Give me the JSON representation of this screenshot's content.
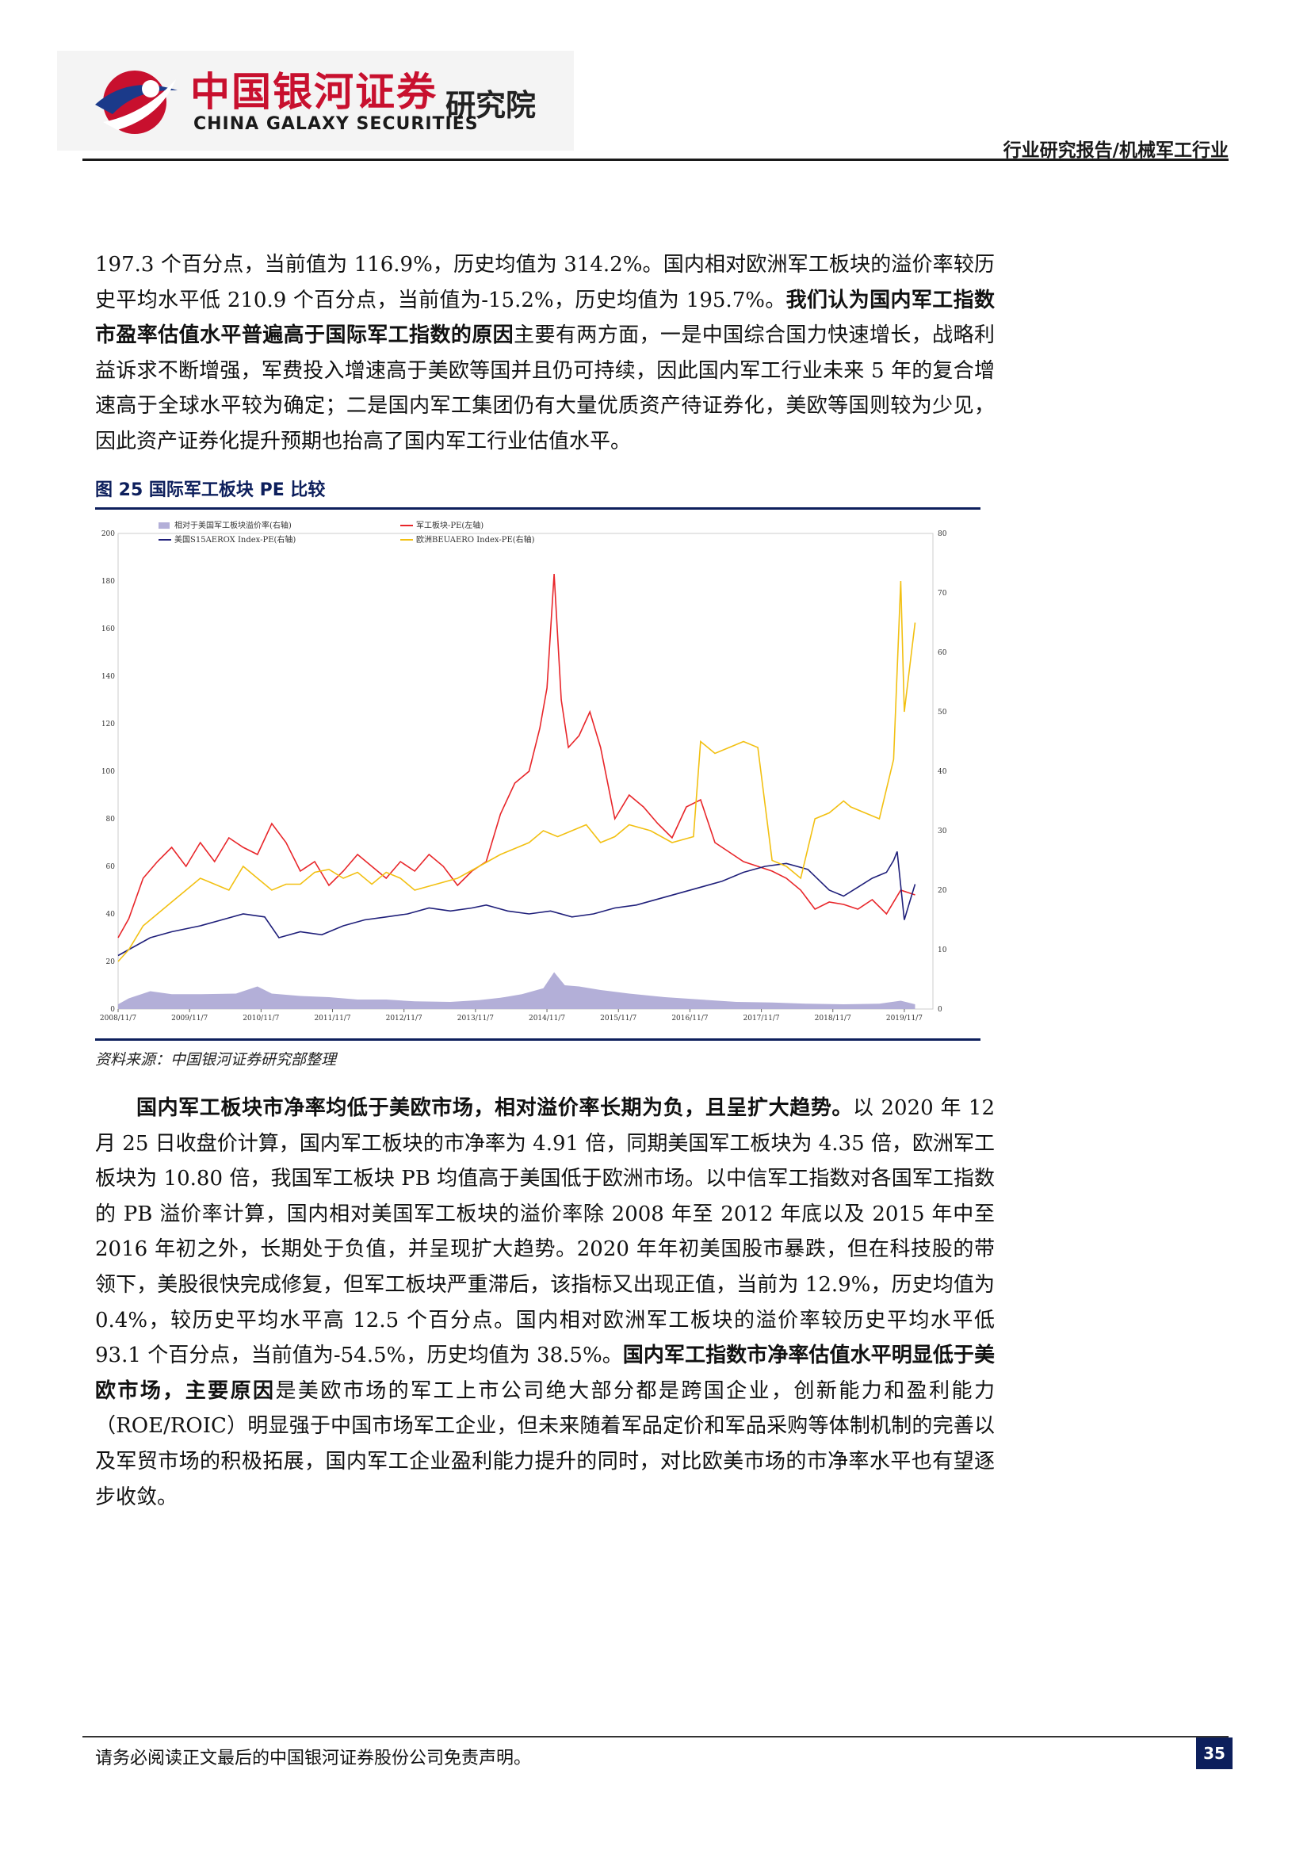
{
  "header": {
    "logo_cn": "中国银河证券",
    "logo_suffix": "研究院",
    "logo_en": "CHINA GALAXY SECURITIES",
    "report_type": "行业研究报告/机械军工行业"
  },
  "body": {
    "para1": [
      {
        "text": "197.3 个百分点，当前值为 116.9%，历史均值为 314.2%。国内相对欧洲军工板块的溢价率较历史平均水平低 210.9 个百分点，当前值为-15.2%，历史均值为 195.7%。",
        "bold": false
      },
      {
        "text": "我们认为国内军工指数市盈率估值水平普遍高于国际军工指数的原因",
        "bold": true
      },
      {
        "text": "主要有两方面，一是中国综合国力快速增长，战略利益诉求不断增强，军费投入增速高于美欧等国并且仍可持续，因此国内军工行业未来 5 年的复合增速高于全球水平较为确定；二是国内军工集团仍有大量优质资产待证券化，美欧等国则较为少见，因此资产证券化提升预期也抬高了国内军工行业估值水平。",
        "bold": false
      }
    ],
    "para2": [
      {
        "text": "国内军工板块市净率均低于美欧市场，相对溢价率长期为负，且呈扩大趋势。",
        "bold": true
      },
      {
        "text": "以 2020 年 12 月 25 日收盘价计算，国内军工板块的市净率为 4.91 倍，同期美国军工板块为 4.35 倍，欧洲军工板块为 10.80 倍，我国军工板块 PB 均值高于美国低于欧洲市场。以中信军工指数对各国军工指数的 PB 溢价率计算，国内相对美国军工板块的溢价率除 2008 年至 2012 年底以及 2015 年中至 2016 年初之外，长期处于负值，并呈现扩大趋势。2020 年年初美国股市暴跌，但在科技股的带领下，美股很快完成修复，但军工板块严重滞后，该指标又出现正值，当前为 12.9%，历史均值为 0.4%，较历史平均水平高 12.5 个百分点。国内相对欧洲军工板块的溢价率较历史平均水平低 93.1 个百分点，当前值为-54.5%，历史均值为 38.5%。",
        "bold": false
      },
      {
        "text": "国内军工指数市净率估值水平明显低于美欧市场，主要原因",
        "bold": true
      },
      {
        "text": "是美欧市场的军工上市公司绝大部分都是跨国企业，创新能力和盈利能力（ROE/ROIC）明显强于中国市场军工企业，但未来随着军品定价和军品采购等体制机制的完善以及军贸市场的积极拓展，国内军工企业盈利能力提升的同时，对比欧美市场的市净率水平也有望逐步收敛。",
        "bold": false
      }
    ]
  },
  "figure": {
    "title": "图 25 国际军工板块 PE 比较",
    "source": "资料来源：中国银河证券研究部整理"
  },
  "chart_data": {
    "type": "line",
    "title": "",
    "x_ticks": [
      "2008/11/7",
      "2009/11/7",
      "2010/11/7",
      "2011/11/7",
      "2012/11/7",
      "2013/11/7",
      "2014/11/7",
      "2015/11/7",
      "2016/11/7",
      "2017/11/7",
      "2018/11/7",
      "2019/11/7"
    ],
    "y_left": {
      "range": [
        0,
        200
      ],
      "ticks": [
        0,
        20,
        40,
        60,
        80,
        100,
        120,
        140,
        160,
        180,
        200
      ]
    },
    "y_right": {
      "range": [
        0,
        80
      ],
      "ticks": [
        0,
        10,
        20,
        30,
        40,
        50,
        60,
        70,
        80
      ]
    },
    "legend_placement": "top",
    "series": [
      {
        "name": "相对于美国军工板块溢价率(右轴)",
        "axis": "right",
        "style": "area",
        "color": "#b3afd8",
        "x": [
          2008.85,
          2009.0,
          2009.3,
          2009.6,
          2010.0,
          2010.5,
          2010.8,
          2011.0,
          2011.4,
          2011.8,
          2012.2,
          2012.6,
          2013.0,
          2013.5,
          2013.9,
          2014.2,
          2014.5,
          2014.8,
          2014.95,
          2015.1,
          2015.3,
          2015.6,
          2016.0,
          2016.5,
          2017.0,
          2017.5,
          2018.0,
          2018.5,
          2019.0,
          2019.5,
          2019.8,
          2020.0
        ],
        "values": [
          0.8,
          1.8,
          3.0,
          2.5,
          2.5,
          2.6,
          3.8,
          2.6,
          2.2,
          2.0,
          1.6,
          1.6,
          1.3,
          1.2,
          1.5,
          1.9,
          2.5,
          3.5,
          6.2,
          4.0,
          3.8,
          3.2,
          2.6,
          2.0,
          1.6,
          1.2,
          1.1,
          0.9,
          0.8,
          0.9,
          1.4,
          0.8
        ]
      },
      {
        "name": "军工板块-PE(左轴)",
        "axis": "left",
        "color": "#e8262a",
        "x": [
          2008.85,
          2009.0,
          2009.2,
          2009.4,
          2009.6,
          2009.8,
          2010.0,
          2010.2,
          2010.4,
          2010.6,
          2010.8,
          2011.0,
          2011.2,
          2011.4,
          2011.6,
          2011.8,
          2012.0,
          2012.2,
          2012.4,
          2012.6,
          2012.8,
          2013.0,
          2013.2,
          2013.4,
          2013.6,
          2013.8,
          2014.0,
          2014.2,
          2014.4,
          2014.6,
          2014.75,
          2014.85,
          2014.95,
          2015.05,
          2015.15,
          2015.3,
          2015.45,
          2015.6,
          2015.8,
          2016.0,
          2016.2,
          2016.4,
          2016.6,
          2016.8,
          2017.0,
          2017.2,
          2017.4,
          2017.6,
          2017.8,
          2018.0,
          2018.2,
          2018.4,
          2018.6,
          2018.8,
          2019.0,
          2019.2,
          2019.4,
          2019.6,
          2019.8,
          2020.0
        ],
        "values": [
          30,
          38,
          55,
          62,
          68,
          60,
          70,
          62,
          72,
          68,
          65,
          78,
          70,
          58,
          62,
          52,
          58,
          65,
          60,
          55,
          62,
          58,
          65,
          60,
          52,
          58,
          62,
          82,
          95,
          100,
          118,
          135,
          183,
          130,
          110,
          115,
          125,
          110,
          80,
          90,
          85,
          78,
          72,
          85,
          88,
          70,
          66,
          62,
          60,
          58,
          55,
          50,
          42,
          45,
          44,
          42,
          46,
          40,
          50,
          48
        ]
      },
      {
        "name": "美国S15AEROX Index-PE(右轴)",
        "axis": "right",
        "color": "#1f1f7a",
        "x": [
          2008.85,
          2009.0,
          2009.3,
          2009.6,
          2010.0,
          2010.3,
          2010.6,
          2010.9,
          2011.1,
          2011.4,
          2011.7,
          2012.0,
          2012.3,
          2012.6,
          2012.9,
          2013.2,
          2013.5,
          2013.8,
          2014.0,
          2014.3,
          2014.6,
          2014.9,
          2015.2,
          2015.5,
          2015.8,
          2016.1,
          2016.4,
          2016.7,
          2017.0,
          2017.3,
          2017.6,
          2017.9,
          2018.2,
          2018.5,
          2018.8,
          2019.0,
          2019.2,
          2019.4,
          2019.6,
          2019.7,
          2019.75,
          2019.85,
          2019.95,
          2020.0
        ],
        "values": [
          9,
          10,
          12,
          13,
          14,
          15,
          16,
          15.5,
          12,
          13,
          12.5,
          14,
          15,
          15.5,
          16,
          17,
          16.5,
          17,
          17.5,
          16.5,
          16,
          16.5,
          15.5,
          16,
          17,
          17.5,
          18.5,
          19.5,
          20.5,
          21.5,
          23,
          24,
          24.5,
          23.5,
          20,
          19,
          20.5,
          22,
          23,
          25,
          26.5,
          15,
          19,
          21
        ]
      },
      {
        "name": "欧洲BEUAERO Index-PE(右轴)",
        "axis": "right",
        "color": "#f2c012",
        "x": [
          2008.85,
          2009.0,
          2009.2,
          2009.4,
          2009.6,
          2009.8,
          2010.0,
          2010.4,
          2010.6,
          2010.8,
          2011.0,
          2011.2,
          2011.4,
          2011.6,
          2011.8,
          2012.0,
          2012.2,
          2012.4,
          2012.6,
          2012.8,
          2013.0,
          2013.3,
          2013.6,
          2013.9,
          2014.2,
          2014.4,
          2014.6,
          2014.8,
          2015.0,
          2015.2,
          2015.4,
          2015.6,
          2015.8,
          2016.0,
          2016.3,
          2016.6,
          2016.9,
          2017.0,
          2017.2,
          2017.4,
          2017.6,
          2017.8,
          2018.0,
          2018.2,
          2018.4,
          2018.6,
          2018.8,
          2018.9,
          2019.0,
          2019.1,
          2019.3,
          2019.5,
          2019.7,
          2019.8,
          2019.85,
          2019.9,
          2020.0
        ],
        "values": [
          8,
          10,
          14,
          16,
          18,
          20,
          22,
          20,
          24,
          22,
          20,
          21,
          21,
          23,
          23.5,
          22,
          23,
          21,
          23,
          22,
          20,
          21,
          22,
          24,
          26,
          27,
          28,
          30,
          29,
          30,
          31,
          28,
          29,
          31,
          30,
          28,
          29,
          45,
          43,
          44,
          45,
          44,
          25,
          24,
          22,
          32,
          33,
          34,
          35,
          34,
          33,
          32,
          42,
          72,
          50,
          55,
          65
        ]
      }
    ]
  }
}
